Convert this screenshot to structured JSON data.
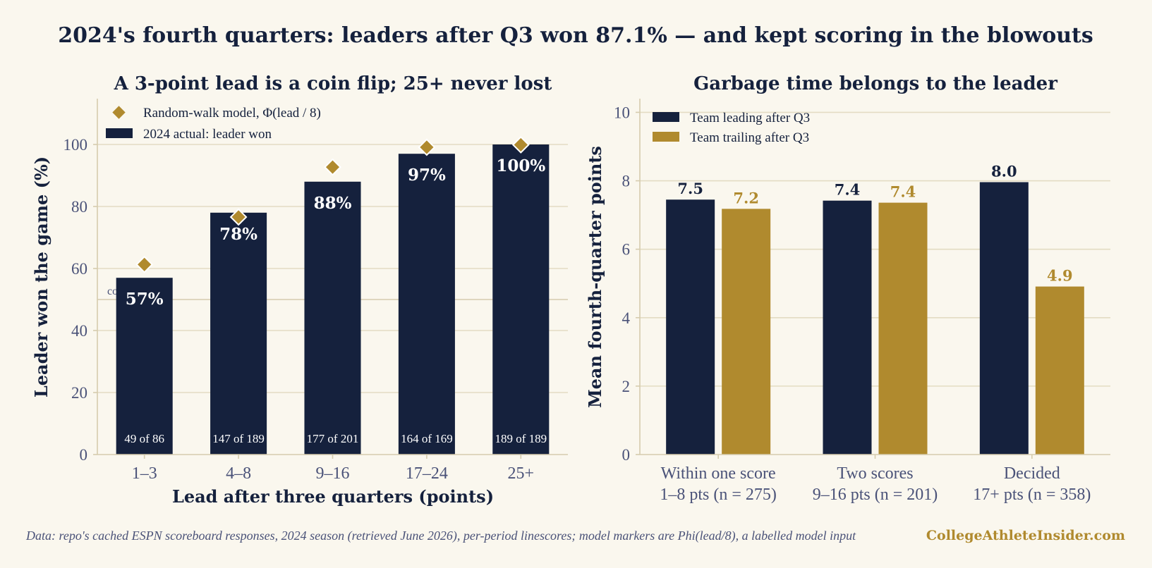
{
  "title": "2024's fourth quarters: leaders after Q3 won 87.1% — and kept scoring in the blowouts",
  "footnote": "Data: repo's cached ESPN scoreboard responses, 2024 season (retrieved June 2026), per-period linescores; model markers are Phi(lead/8), a labelled model input",
  "credit": "CollegeAthleteInsider.com",
  "colors": {
    "navy": "#15213d",
    "gold": "#b08a2e",
    "tick": "#4a5278",
    "grid": "#e3dcc3"
  },
  "chart_data": [
    {
      "type": "bar",
      "title": "A 3-point lead is a coin flip; 25+ never lost",
      "xlabel": "Lead after three quarters (points)",
      "ylabel": "Leader won the game (%)",
      "ylim": [
        0,
        120
      ],
      "yticks": [
        0,
        20,
        40,
        60,
        80,
        100
      ],
      "categories": [
        "1–3",
        "4–8",
        "9–16",
        "17–24",
        "25+"
      ],
      "series": [
        {
          "name": "2024 actual: leader won",
          "values": [
            57,
            78,
            88,
            97,
            100
          ],
          "labels": [
            "57%",
            "78%",
            "88%",
            "97%",
            "100%"
          ],
          "counts": [
            "49 of 86",
            "147 of 189",
            "177 of 201",
            "164 of 169",
            "189 of 189"
          ]
        },
        {
          "name": "Random-walk model, Φ(lead / 8)",
          "values": [
            61.3,
            76.6,
            92.7,
            99.1,
            99.9
          ]
        }
      ],
      "reference_line": {
        "value": 50,
        "label": "coin flip"
      },
      "legend": "top-left",
      "grid": "y"
    },
    {
      "type": "bar",
      "title": "Garbage time belongs to the leader",
      "xlabel": "",
      "ylabel": "Mean fourth-quarter points",
      "ylim": [
        0,
        10.4
      ],
      "yticks": [
        0,
        2,
        4,
        6,
        8,
        10
      ],
      "categories": [
        [
          "Within one score",
          "1–8 pts (n = 275)"
        ],
        [
          "Two scores",
          "9–16 pts (n = 201)"
        ],
        [
          "Decided",
          "17+ pts (n = 358)"
        ]
      ],
      "series": [
        {
          "name": "Team leading after Q3",
          "values": [
            7.45,
            7.42,
            7.96
          ],
          "labels": [
            "7.5",
            "7.4",
            "8.0"
          ]
        },
        {
          "name": "Team trailing after Q3",
          "values": [
            7.18,
            7.36,
            4.91
          ],
          "labels": [
            "7.2",
            "7.4",
            "4.9"
          ]
        }
      ],
      "legend": "top-left",
      "grid": "y"
    }
  ]
}
